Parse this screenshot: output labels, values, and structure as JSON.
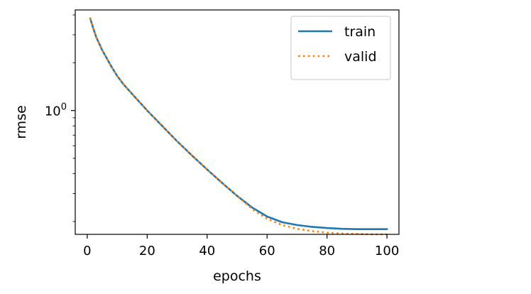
{
  "chart_data": {
    "type": "line",
    "title": "",
    "xlabel": "epochs",
    "ylabel": "rmse",
    "xlim": [
      -4,
      104
    ],
    "ylim": [
      0.166,
      4.3
    ],
    "yscale": "log",
    "grid": false,
    "legend_position": "top-right",
    "x_ticks": [
      {
        "value": 0,
        "label": "0"
      },
      {
        "value": 20,
        "label": "20"
      },
      {
        "value": 40,
        "label": "40"
      },
      {
        "value": 60,
        "label": "60"
      },
      {
        "value": 80,
        "label": "80"
      },
      {
        "value": 100,
        "label": "100"
      }
    ],
    "y_major_ticks": [
      {
        "value": 1,
        "base": "10",
        "exp": "0"
      }
    ],
    "y_minor_ticks": [
      0.2,
      0.3,
      0.4,
      0.5,
      0.6,
      0.7,
      0.8,
      0.9,
      2,
      3,
      4
    ],
    "x": [
      1,
      2,
      3,
      5,
      8,
      10,
      12,
      15,
      20,
      25,
      30,
      35,
      40,
      45,
      50,
      55,
      60,
      65,
      70,
      75,
      80,
      85,
      90,
      95,
      100
    ],
    "series": [
      {
        "name": "train",
        "color": "#1f77b4",
        "style": "solid",
        "values": [
          3.8,
          3.3,
          2.9,
          2.4,
          1.9,
          1.65,
          1.47,
          1.27,
          1.0,
          0.8,
          0.64,
          0.52,
          0.425,
          0.35,
          0.29,
          0.245,
          0.215,
          0.198,
          0.19,
          0.185,
          0.182,
          0.18,
          0.179,
          0.179,
          0.179
        ]
      },
      {
        "name": "valid",
        "color": "#ff7f0e",
        "style": "dotted",
        "values": [
          3.8,
          3.3,
          2.9,
          2.4,
          1.9,
          1.65,
          1.47,
          1.27,
          1.0,
          0.8,
          0.64,
          0.52,
          0.425,
          0.35,
          0.29,
          0.24,
          0.208,
          0.19,
          0.18,
          0.174,
          0.17,
          0.168,
          0.167,
          0.166,
          0.166
        ]
      }
    ]
  }
}
